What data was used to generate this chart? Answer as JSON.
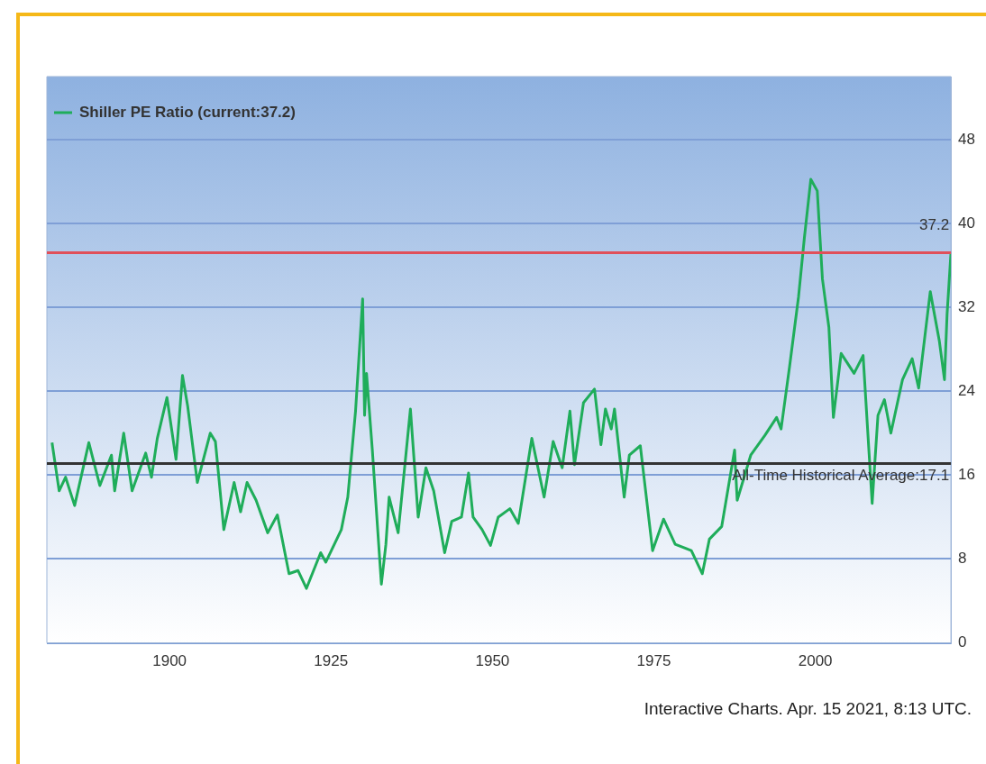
{
  "chart_data": {
    "type": "line",
    "xlim": [
      1881,
      2021
    ],
    "xticks": [
      1900,
      1925,
      1950,
      1975,
      2000
    ],
    "ylim": [
      0,
      54
    ],
    "yticks": [
      0,
      8,
      16,
      24,
      32,
      40,
      48
    ],
    "grid": "y",
    "legend": "top left",
    "marker": "none",
    "line_style": "solid",
    "series": [
      {
        "name": "Shiller PE Ratio (current:37.2)",
        "color": "#1fad5a",
        "x": [
          1881.8,
          1882.9,
          1883.9,
          1885.3,
          1887.5,
          1889.2,
          1891.0,
          1891.5,
          1892.9,
          1894.2,
          1896.3,
          1897.2,
          1898.1,
          1899.6,
          1901.0,
          1902.0,
          1902.8,
          1904.3,
          1906.3,
          1907.1,
          1908.4,
          1910.0,
          1911.0,
          1912.0,
          1913.4,
          1915.2,
          1916.7,
          1918.5,
          1919.9,
          1921.2,
          1923.4,
          1924.2,
          1926.6,
          1927.6,
          1928.8,
          1929.9,
          1930.2,
          1930.5,
          1931.4,
          1932.8,
          1933.5,
          1934.0,
          1935.4,
          1937.3,
          1938.5,
          1939.7,
          1940.9,
          1942.6,
          1943.7,
          1945.2,
          1946.3,
          1947.0,
          1948.4,
          1949.7,
          1950.9,
          1952.7,
          1954.0,
          1956.1,
          1958.0,
          1959.4,
          1960.8,
          1962.0,
          1962.7,
          1964.1,
          1965.8,
          1966.8,
          1967.5,
          1968.4,
          1968.9,
          1970.4,
          1971.2,
          1972.9,
          1974.8,
          1976.5,
          1978.3,
          1980.8,
          1982.5,
          1983.6,
          1985.5,
          1987.5,
          1987.9,
          1990.0,
          1992.2,
          1994.0,
          1994.7,
          1996.0,
          1997.4,
          1998.3,
          1999.3,
          2000.3,
          2001.1,
          2002.1,
          2002.8,
          2004.0,
          2006.0,
          2007.4,
          2008.8,
          2009.7,
          2010.7,
          2011.7,
          2013.5,
          2015.0,
          2016.0,
          2017.8,
          2019.2,
          2020.0,
          2020.4,
          2021
        ],
        "values": [
          19.1,
          14.5,
          15.8,
          13.1,
          19.1,
          15.0,
          17.9,
          14.5,
          20.0,
          14.5,
          18.1,
          15.8,
          19.5,
          23.4,
          17.5,
          25.5,
          22.6,
          15.3,
          20.0,
          19.2,
          10.8,
          15.3,
          12.5,
          15.3,
          13.6,
          10.5,
          12.2,
          6.6,
          6.9,
          5.2,
          8.6,
          7.7,
          10.8,
          13.9,
          22.1,
          32.8,
          21.7,
          25.7,
          18.4,
          5.6,
          9.4,
          13.9,
          10.5,
          22.3,
          12.0,
          16.7,
          14.5,
          8.6,
          11.6,
          12.0,
          16.2,
          12.0,
          10.8,
          9.3,
          12.0,
          12.8,
          11.4,
          19.5,
          13.9,
          19.2,
          16.7,
          22.1,
          17.0,
          22.9,
          24.2,
          18.9,
          22.3,
          20.4,
          22.3,
          13.9,
          17.9,
          18.8,
          8.8,
          11.8,
          9.4,
          8.8,
          6.6,
          9.9,
          11.1,
          18.4,
          13.6,
          17.9,
          19.8,
          21.5,
          20.4,
          26.3,
          33.0,
          38.6,
          44.2,
          43.1,
          34.7,
          30.1,
          21.5,
          27.6,
          25.7,
          27.4,
          13.3,
          21.7,
          23.2,
          20.0,
          25.1,
          27.1,
          24.3,
          33.5,
          28.8,
          25.1,
          31.3,
          37.2
        ]
      }
    ],
    "ref_lines": [
      {
        "axis": "y",
        "value": 37.2,
        "label": "37.2",
        "color": "#e0505a"
      },
      {
        "axis": "y",
        "value": 17.1,
        "label": "All-Time Historical Average:17.1",
        "color": "#333333"
      }
    ],
    "annotations": [
      "Interactive Charts. Apr. 15 2021, 8:13 UTC."
    ]
  }
}
